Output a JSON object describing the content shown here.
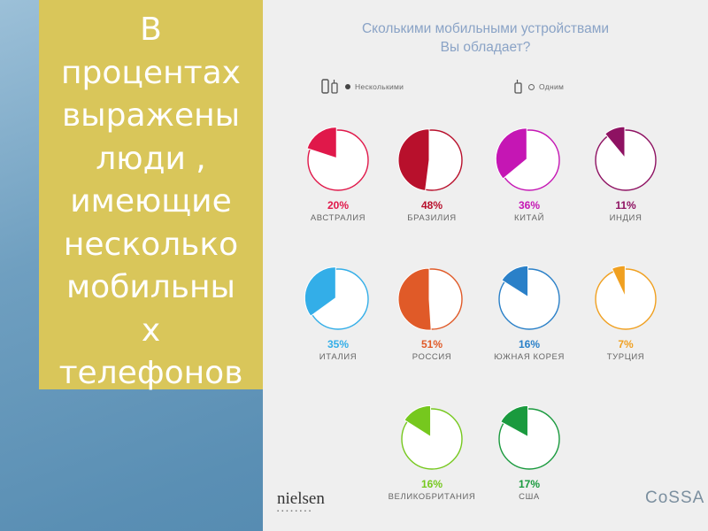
{
  "sidebar": {
    "text": "В\nпроцентах\nвыражены\nлюди ,\nимеющие\nнесколько\nмобильны\nх\nтелефонов"
  },
  "panel": {
    "title_line1": "Сколькими мобильными устройствами",
    "title_line2": "Вы обладает?",
    "legend": {
      "multiple_label": "Несколькими",
      "multiple_icon": "two-phones-icon",
      "single_label": "Одним",
      "single_icon": "phone-icon"
    },
    "logos": {
      "left": "nielsen",
      "right": "CoSSA"
    }
  },
  "chart_data": {
    "type": "pie",
    "series": [
      {
        "category": "АВСТРАЛИЯ",
        "value": 20,
        "label": "20%",
        "color": "#e0184a"
      },
      {
        "category": "БРАЗИЛИЯ",
        "value": 48,
        "label": "48%",
        "color": "#b8102c"
      },
      {
        "category": "КИТАЙ",
        "value": 36,
        "label": "36%",
        "color": "#c516b4"
      },
      {
        "category": "ИНДИЯ",
        "value": 11,
        "label": "11%",
        "color": "#8e1262"
      },
      {
        "category": "ИТАЛИЯ",
        "value": 35,
        "label": "35%",
        "color": "#33aee8"
      },
      {
        "category": "РОССИЯ",
        "value": 51,
        "label": "51%",
        "color": "#e05a28"
      },
      {
        "category": "ЮЖНАЯ КОРЕЯ",
        "value": 16,
        "label": "16%",
        "color": "#2a80c8"
      },
      {
        "category": "ТУРЦИЯ",
        "value": 7,
        "label": "7%",
        "color": "#f0a020"
      },
      {
        "category": "ВЕЛИКОБРИТАНИЯ",
        "value": 16,
        "label": "16%",
        "color": "#76c81e"
      },
      {
        "category": "США",
        "value": 17,
        "label": "17%",
        "color": "#1a9a3e"
      }
    ]
  }
}
